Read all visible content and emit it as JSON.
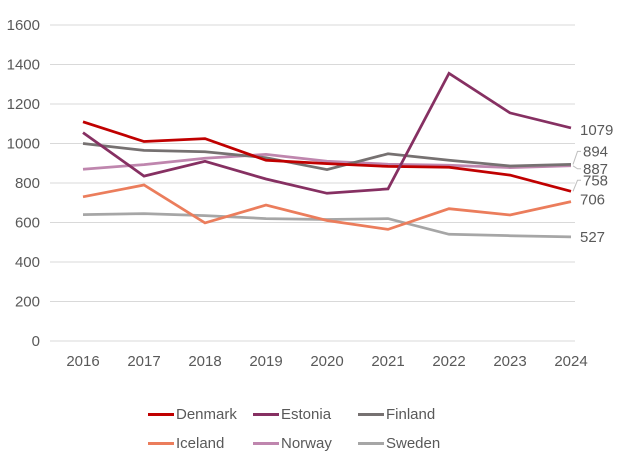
{
  "chart_data": {
    "type": "line",
    "title": "",
    "xlabel": "",
    "ylabel": "",
    "x": [
      "2016",
      "2017",
      "2018",
      "2019",
      "2020",
      "2021",
      "2022",
      "2023",
      "2024"
    ],
    "yticks": [
      "1600",
      "1400",
      "1200",
      "1000",
      "800",
      "600",
      "400",
      "200",
      "0"
    ],
    "ylim": [
      0,
      1600
    ],
    "grid": "horizontal",
    "legend_position": "bottom-center",
    "series": [
      {
        "name": "Denmark",
        "color": "#C00000",
        "values": [
          1110,
          1010,
          1025,
          915,
          898,
          884,
          880,
          840,
          758
        ],
        "end_label": "758"
      },
      {
        "name": "Estonia",
        "color": "#863062",
        "values": [
          1055,
          835,
          910,
          820,
          748,
          770,
          1355,
          1155,
          1079
        ],
        "end_label": "1079"
      },
      {
        "name": "Finland",
        "color": "#767171",
        "values": [
          1000,
          965,
          958,
          928,
          868,
          948,
          915,
          886,
          894
        ],
        "end_label": "894"
      },
      {
        "name": "Iceland",
        "color": "#EB7D5C",
        "values": [
          730,
          790,
          598,
          688,
          610,
          565,
          670,
          638,
          706
        ],
        "end_label": "706"
      },
      {
        "name": "Norway",
        "color": "#BF86AE",
        "values": [
          870,
          893,
          925,
          945,
          910,
          895,
          890,
          878,
          887
        ],
        "end_label": "887"
      },
      {
        "name": "Sweden",
        "color": "#A6A6A6",
        "values": [
          640,
          645,
          635,
          620,
          615,
          620,
          540,
          533,
          527
        ],
        "end_label": "527"
      }
    ],
    "end_label_layout": {
      "Denmark": {
        "dy": -11,
        "leader": true
      },
      "Estonia": {
        "dy": 2,
        "leader": false
      },
      "Finland": {
        "dy": -13,
        "leader": true
      },
      "Iceland": {
        "dy": -2.5,
        "leader": false
      },
      "Norway": {
        "dy": 3,
        "leader": true
      },
      "Sweden": {
        "dy": 0,
        "leader": false
      }
    },
    "draw_order": [
      "Sweden",
      "Iceland",
      "Norway",
      "Finland",
      "Denmark",
      "Estonia"
    ],
    "styles": {
      "grid_color": "#D9D9D9",
      "tick_color": "#595959",
      "end_label_color": "#595959",
      "leader_color": "#BFBFBF",
      "legend_text_color": "#595959"
    }
  }
}
